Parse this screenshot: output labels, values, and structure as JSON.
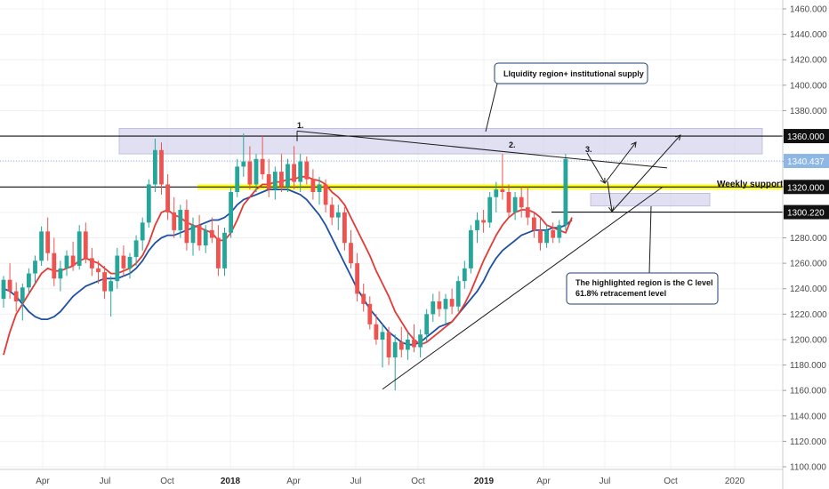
{
  "chart_data": {
    "type": "candlestick",
    "y_axis": {
      "range": [
        1100,
        1470
      ],
      "ticks": [
        "1460.000",
        "1440.000",
        "1420.000",
        "1400.000",
        "1380.000",
        "1360.000",
        "1340.000",
        "1320.000",
        "1300.000",
        "1280.000",
        "1260.000",
        "1240.000",
        "1220.000",
        "1200.000",
        "1180.000",
        "1160.000",
        "1140.000",
        "1120.000",
        "1100.000"
      ]
    },
    "x_axis": {
      "ticks": [
        {
          "label": "Apr",
          "bold": false
        },
        {
          "label": "Jul",
          "bold": false
        },
        {
          "label": "Oct",
          "bold": false
        },
        {
          "label": "2018",
          "bold": true
        },
        {
          "label": "Apr",
          "bold": false
        },
        {
          "label": "Jul",
          "bold": false
        },
        {
          "label": "Oct",
          "bold": false
        },
        {
          "label": "2019",
          "bold": true
        },
        {
          "label": "Apr",
          "bold": false
        },
        {
          "label": "Jul",
          "bold": false
        },
        {
          "label": "Oct",
          "bold": false
        },
        {
          "label": "2020",
          "bold": false
        }
      ]
    },
    "candles": [
      {
        "o": 1232,
        "h": 1250,
        "l": 1225,
        "c": 1247
      },
      {
        "o": 1247,
        "h": 1260,
        "l": 1232,
        "c": 1238
      },
      {
        "o": 1238,
        "h": 1245,
        "l": 1222,
        "c": 1230
      },
      {
        "o": 1230,
        "h": 1244,
        "l": 1215,
        "c": 1241
      },
      {
        "o": 1241,
        "h": 1256,
        "l": 1236,
        "c": 1252
      },
      {
        "o": 1252,
        "h": 1266,
        "l": 1244,
        "c": 1262
      },
      {
        "o": 1262,
        "h": 1289,
        "l": 1258,
        "c": 1285
      },
      {
        "o": 1285,
        "h": 1296,
        "l": 1262,
        "c": 1268
      },
      {
        "o": 1268,
        "h": 1280,
        "l": 1242,
        "c": 1248
      },
      {
        "o": 1248,
        "h": 1262,
        "l": 1238,
        "c": 1256
      },
      {
        "o": 1256,
        "h": 1270,
        "l": 1250,
        "c": 1266
      },
      {
        "o": 1266,
        "h": 1277,
        "l": 1254,
        "c": 1258
      },
      {
        "o": 1258,
        "h": 1290,
        "l": 1255,
        "c": 1285
      },
      {
        "o": 1285,
        "h": 1292,
        "l": 1260,
        "c": 1264
      },
      {
        "o": 1264,
        "h": 1272,
        "l": 1250,
        "c": 1256
      },
      {
        "o": 1256,
        "h": 1262,
        "l": 1244,
        "c": 1253
      },
      {
        "o": 1253,
        "h": 1258,
        "l": 1232,
        "c": 1238
      },
      {
        "o": 1238,
        "h": 1250,
        "l": 1218,
        "c": 1246
      },
      {
        "o": 1246,
        "h": 1272,
        "l": 1240,
        "c": 1266
      },
      {
        "o": 1266,
        "h": 1274,
        "l": 1250,
        "c": 1256
      },
      {
        "o": 1256,
        "h": 1268,
        "l": 1248,
        "c": 1265
      },
      {
        "o": 1265,
        "h": 1282,
        "l": 1258,
        "c": 1278
      },
      {
        "o": 1278,
        "h": 1296,
        "l": 1270,
        "c": 1292
      },
      {
        "o": 1292,
        "h": 1326,
        "l": 1288,
        "c": 1322
      },
      {
        "o": 1322,
        "h": 1358,
        "l": 1316,
        "c": 1349
      },
      {
        "o": 1349,
        "h": 1355,
        "l": 1314,
        "c": 1322
      },
      {
        "o": 1322,
        "h": 1330,
        "l": 1294,
        "c": 1300
      },
      {
        "o": 1300,
        "h": 1312,
        "l": 1280,
        "c": 1286
      },
      {
        "o": 1286,
        "h": 1306,
        "l": 1280,
        "c": 1302
      },
      {
        "o": 1302,
        "h": 1310,
        "l": 1270,
        "c": 1276
      },
      {
        "o": 1276,
        "h": 1296,
        "l": 1266,
        "c": 1290
      },
      {
        "o": 1290,
        "h": 1298,
        "l": 1270,
        "c": 1274
      },
      {
        "o": 1274,
        "h": 1290,
        "l": 1268,
        "c": 1286
      },
      {
        "o": 1286,
        "h": 1296,
        "l": 1276,
        "c": 1280
      },
      {
        "o": 1280,
        "h": 1290,
        "l": 1250,
        "c": 1256
      },
      {
        "o": 1256,
        "h": 1288,
        "l": 1250,
        "c": 1284
      },
      {
        "o": 1284,
        "h": 1320,
        "l": 1280,
        "c": 1316
      },
      {
        "o": 1316,
        "h": 1342,
        "l": 1312,
        "c": 1336
      },
      {
        "o": 1336,
        "h": 1362,
        "l": 1328,
        "c": 1340
      },
      {
        "o": 1340,
        "h": 1352,
        "l": 1318,
        "c": 1322
      },
      {
        "o": 1322,
        "h": 1346,
        "l": 1316,
        "c": 1342
      },
      {
        "o": 1342,
        "h": 1360,
        "l": 1326,
        "c": 1330
      },
      {
        "o": 1330,
        "h": 1342,
        "l": 1312,
        "c": 1318
      },
      {
        "o": 1318,
        "h": 1336,
        "l": 1310,
        "c": 1332
      },
      {
        "o": 1332,
        "h": 1346,
        "l": 1316,
        "c": 1320
      },
      {
        "o": 1320,
        "h": 1342,
        "l": 1316,
        "c": 1338
      },
      {
        "o": 1338,
        "h": 1352,
        "l": 1318,
        "c": 1324
      },
      {
        "o": 1324,
        "h": 1346,
        "l": 1316,
        "c": 1340
      },
      {
        "o": 1340,
        "h": 1344,
        "l": 1322,
        "c": 1326
      },
      {
        "o": 1326,
        "h": 1334,
        "l": 1310,
        "c": 1316
      },
      {
        "o": 1316,
        "h": 1328,
        "l": 1306,
        "c": 1322
      },
      {
        "o": 1322,
        "h": 1326,
        "l": 1300,
        "c": 1306
      },
      {
        "o": 1306,
        "h": 1312,
        "l": 1290,
        "c": 1296
      },
      {
        "o": 1296,
        "h": 1306,
        "l": 1286,
        "c": 1300
      },
      {
        "o": 1300,
        "h": 1304,
        "l": 1270,
        "c": 1276
      },
      {
        "o": 1276,
        "h": 1286,
        "l": 1256,
        "c": 1260
      },
      {
        "o": 1260,
        "h": 1268,
        "l": 1230,
        "c": 1236
      },
      {
        "o": 1236,
        "h": 1244,
        "l": 1222,
        "c": 1228
      },
      {
        "o": 1228,
        "h": 1234,
        "l": 1208,
        "c": 1212
      },
      {
        "o": 1212,
        "h": 1220,
        "l": 1196,
        "c": 1200
      },
      {
        "o": 1200,
        "h": 1212,
        "l": 1178,
        "c": 1206
      },
      {
        "o": 1206,
        "h": 1210,
        "l": 1180,
        "c": 1186
      },
      {
        "o": 1186,
        "h": 1204,
        "l": 1160,
        "c": 1198
      },
      {
        "o": 1198,
        "h": 1210,
        "l": 1186,
        "c": 1192
      },
      {
        "o": 1192,
        "h": 1206,
        "l": 1184,
        "c": 1200
      },
      {
        "o": 1200,
        "h": 1212,
        "l": 1190,
        "c": 1194
      },
      {
        "o": 1194,
        "h": 1208,
        "l": 1186,
        "c": 1204
      },
      {
        "o": 1204,
        "h": 1224,
        "l": 1198,
        "c": 1220
      },
      {
        "o": 1220,
        "h": 1236,
        "l": 1214,
        "c": 1230
      },
      {
        "o": 1230,
        "h": 1238,
        "l": 1218,
        "c": 1224
      },
      {
        "o": 1224,
        "h": 1236,
        "l": 1212,
        "c": 1232
      },
      {
        "o": 1232,
        "h": 1240,
        "l": 1220,
        "c": 1226
      },
      {
        "o": 1226,
        "h": 1250,
        "l": 1222,
        "c": 1246
      },
      {
        "o": 1246,
        "h": 1262,
        "l": 1240,
        "c": 1256
      },
      {
        "o": 1256,
        "h": 1290,
        "l": 1252,
        "c": 1286
      },
      {
        "o": 1286,
        "h": 1300,
        "l": 1276,
        "c": 1294
      },
      {
        "o": 1294,
        "h": 1302,
        "l": 1284,
        "c": 1292
      },
      {
        "o": 1292,
        "h": 1316,
        "l": 1288,
        "c": 1312
      },
      {
        "o": 1312,
        "h": 1324,
        "l": 1300,
        "c": 1318
      },
      {
        "o": 1318,
        "h": 1346,
        "l": 1310,
        "c": 1316
      },
      {
        "o": 1316,
        "h": 1322,
        "l": 1296,
        "c": 1300
      },
      {
        "o": 1300,
        "h": 1316,
        "l": 1294,
        "c": 1312
      },
      {
        "o": 1312,
        "h": 1320,
        "l": 1296,
        "c": 1304
      },
      {
        "o": 1304,
        "h": 1320,
        "l": 1290,
        "c": 1296
      },
      {
        "o": 1296,
        "h": 1300,
        "l": 1280,
        "c": 1286
      },
      {
        "o": 1286,
        "h": 1296,
        "l": 1270,
        "c": 1276
      },
      {
        "o": 1276,
        "h": 1290,
        "l": 1272,
        "c": 1286
      },
      {
        "o": 1286,
        "h": 1292,
        "l": 1276,
        "c": 1280
      },
      {
        "o": 1280,
        "h": 1294,
        "l": 1276,
        "c": 1290
      },
      {
        "o": 1290,
        "h": 1346,
        "l": 1286,
        "c": 1342
      }
    ],
    "ema_fast": [
      1188,
      1206,
      1220,
      1228,
      1236,
      1244,
      1252,
      1256,
      1254,
      1254,
      1256,
      1258,
      1262,
      1264,
      1262,
      1260,
      1256,
      1252,
      1252,
      1254,
      1256,
      1260,
      1266,
      1276,
      1290,
      1300,
      1302,
      1298,
      1296,
      1292,
      1290,
      1288,
      1286,
      1284,
      1278,
      1278,
      1284,
      1294,
      1306,
      1312,
      1318,
      1322,
      1322,
      1324,
      1324,
      1326,
      1326,
      1328,
      1328,
      1326,
      1325,
      1322,
      1316,
      1312,
      1306,
      1296,
      1286,
      1276,
      1266,
      1254,
      1244,
      1234,
      1222,
      1214,
      1206,
      1200,
      1196,
      1198,
      1202,
      1206,
      1210,
      1214,
      1220,
      1228,
      1238,
      1250,
      1262,
      1272,
      1282,
      1290,
      1296,
      1300,
      1302,
      1302,
      1300,
      1296,
      1290,
      1288,
      1286,
      1284,
      1296
    ],
    "ema_slow": [
      1240,
      1238,
      1234,
      1228,
      1222,
      1218,
      1216,
      1216,
      1218,
      1222,
      1228,
      1234,
      1238,
      1242,
      1244,
      1246,
      1248,
      1248,
      1248,
      1250,
      1252,
      1256,
      1262,
      1270,
      1276,
      1280,
      1282,
      1282,
      1284,
      1286,
      1288,
      1290,
      1292,
      1294,
      1294,
      1296,
      1300,
      1306,
      1310,
      1312,
      1314,
      1316,
      1318,
      1318,
      1318,
      1318,
      1316,
      1314,
      1310,
      1304,
      1298,
      1290,
      1280,
      1270,
      1260,
      1250,
      1240,
      1232,
      1224,
      1218,
      1212,
      1206,
      1202,
      1198,
      1196,
      1196,
      1198,
      1202,
      1206,
      1210,
      1212,
      1214,
      1220,
      1226,
      1232,
      1238,
      1246,
      1256,
      1264,
      1270,
      1274,
      1278,
      1282,
      1284,
      1286,
      1286,
      1286,
      1288,
      1288,
      1290,
      1294
    ],
    "price_levels": [
      {
        "value": "1360.000",
        "kind": "dark"
      },
      {
        "value": "1340.437",
        "kind": "current"
      },
      {
        "value": "1320.000",
        "kind": "dark"
      },
      {
        "value": "1300.220",
        "kind": "dark"
      }
    ],
    "annotations": {
      "liquidity_box": "LIquidity region+ institutional supply",
      "weekly_support": "Weekly support",
      "c_level_box_line1": "The highlighted region is the C level",
      "c_level_box_line2": "61.8% retracement level",
      "point_1": "1.",
      "point_2": "2.",
      "point_3": "3."
    },
    "colors": {
      "up": "#26a69a",
      "down": "#ef5350",
      "ema_fast": "#e53935",
      "ema_slow": "#1e4fa3",
      "support_band": "#ffff00",
      "zone": "#c9c7e8",
      "current_price": "#8fb7e6",
      "level_dark": "#111111"
    }
  }
}
